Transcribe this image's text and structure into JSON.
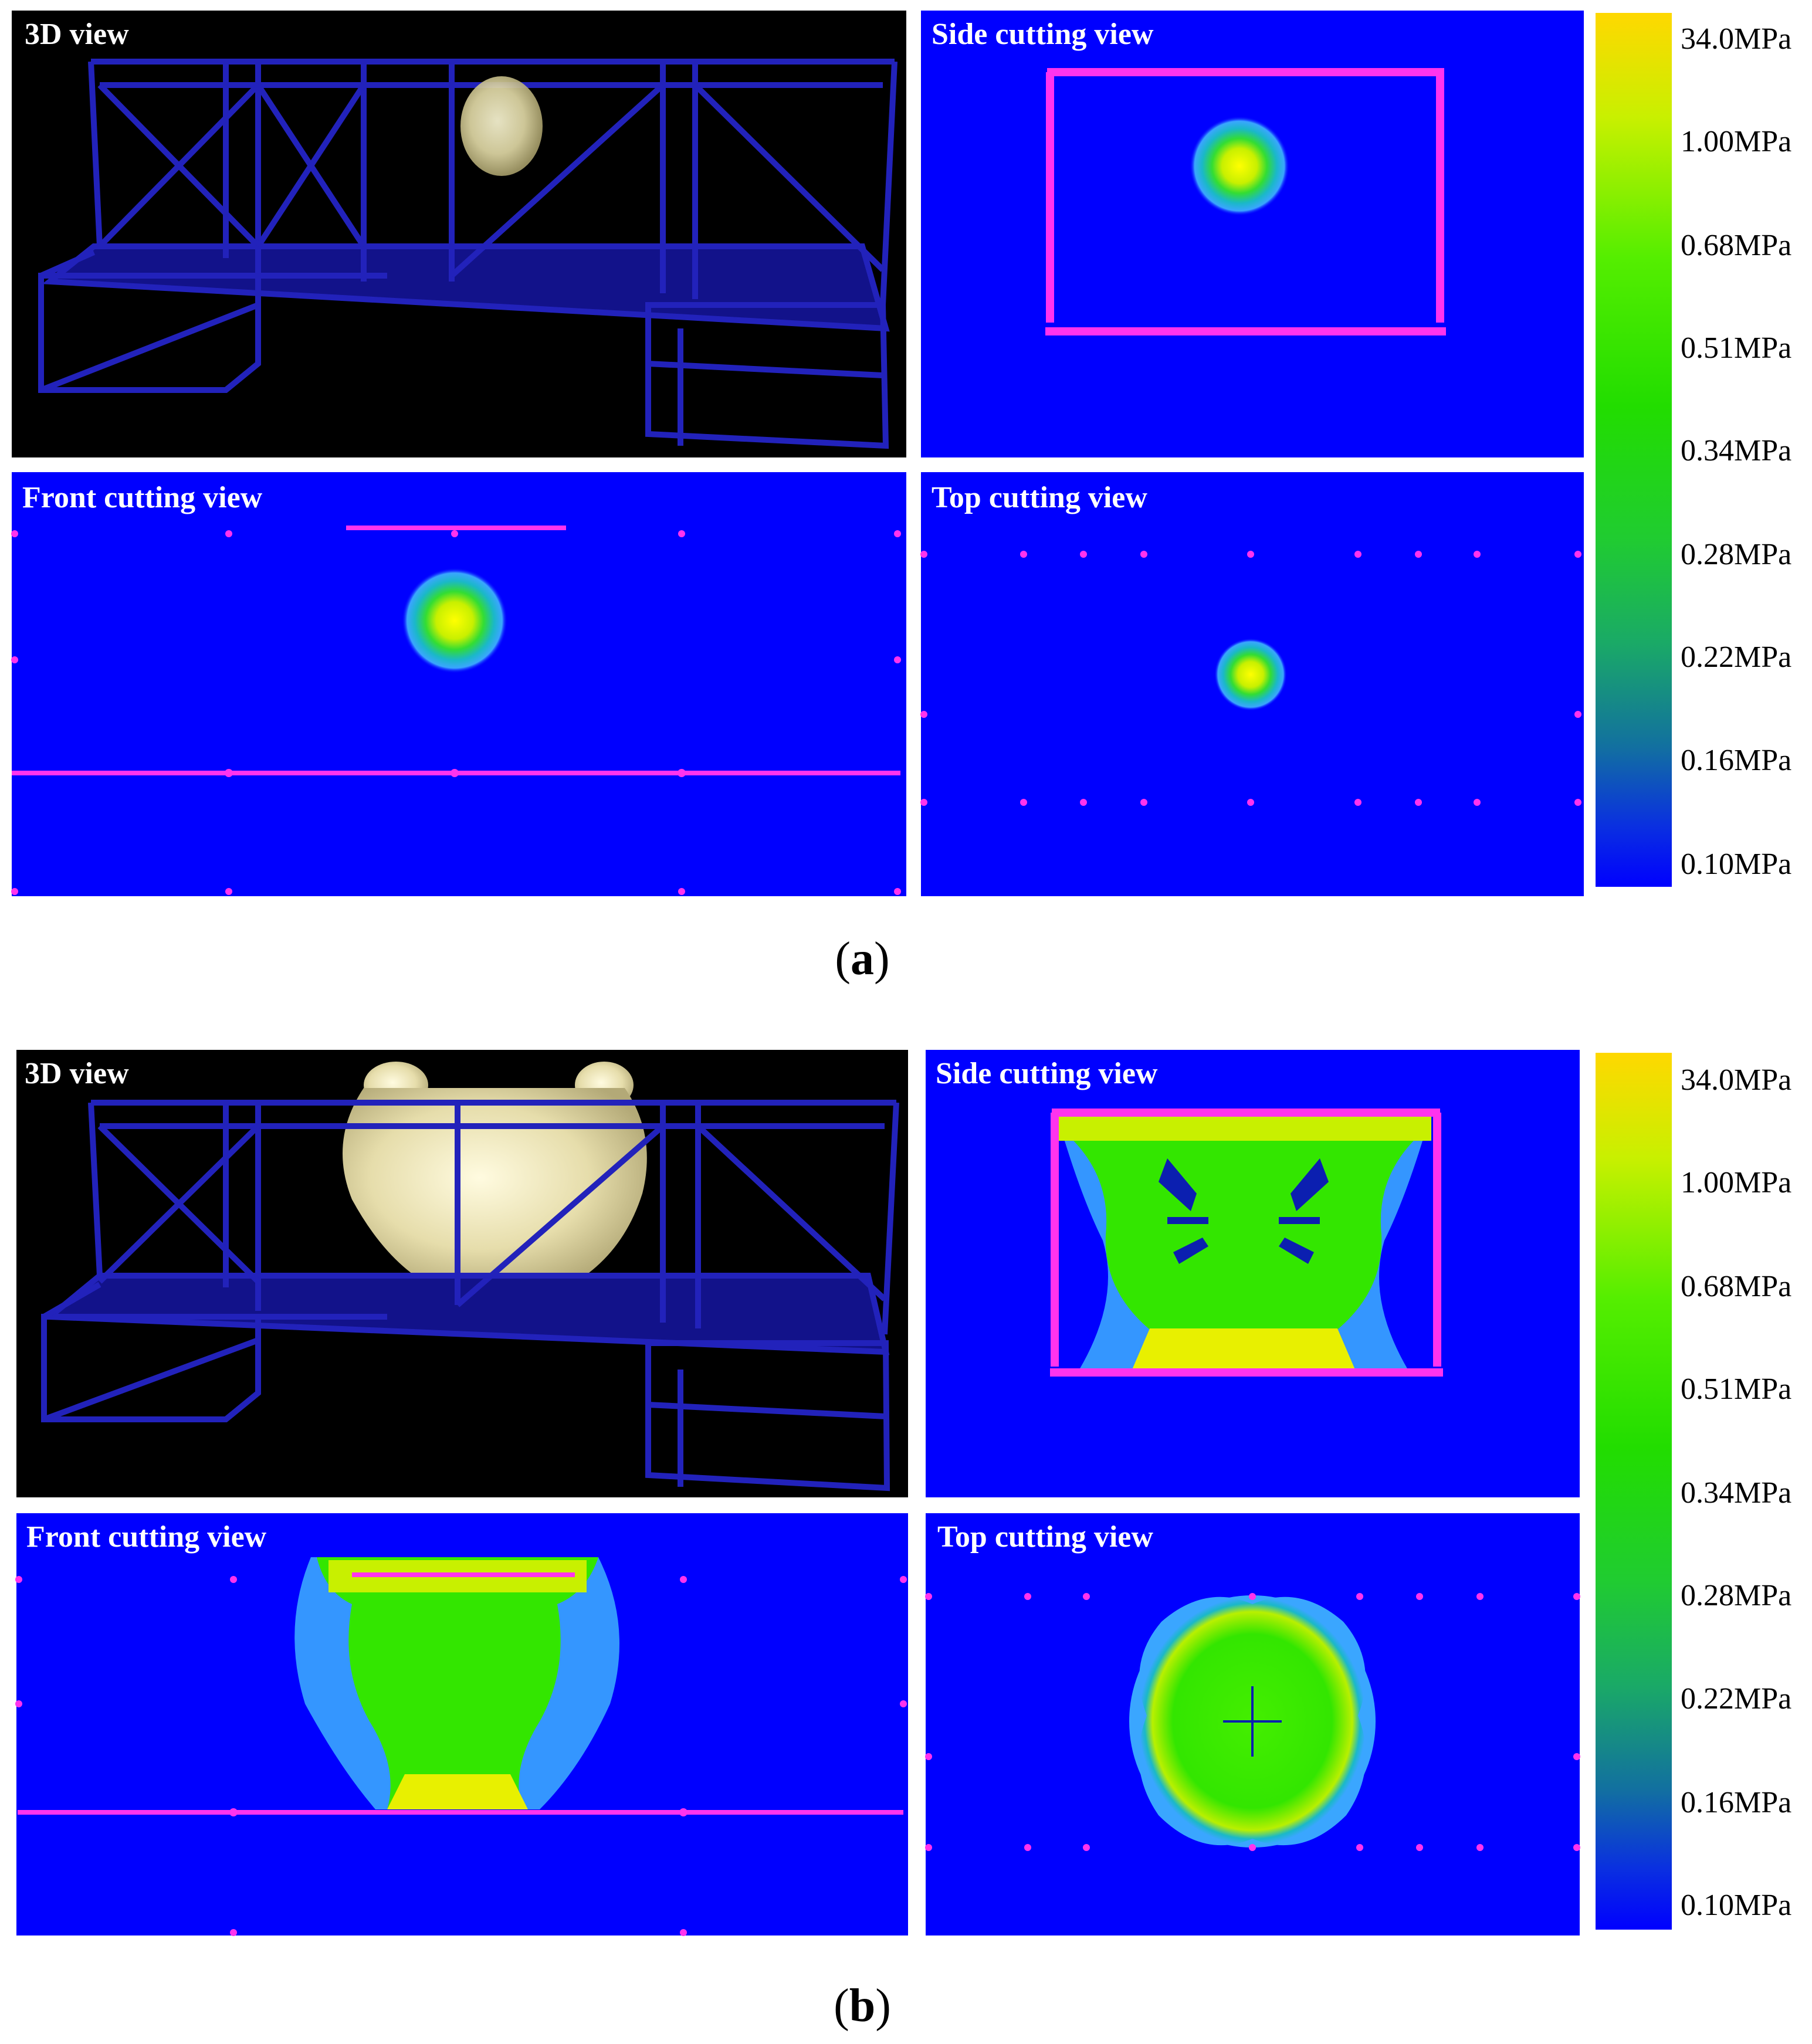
{
  "figures": [
    {
      "id": "a",
      "caption_letter": "a",
      "panels": {
        "view_3d": "3D view",
        "side": "Side cutting view",
        "front": "Front cutting view",
        "top": "Top cutting view"
      }
    },
    {
      "id": "b",
      "caption_letter": "b",
      "panels": {
        "view_3d": "3D view",
        "side": "Side cutting view",
        "front": "Front cutting view",
        "top": "Top cutting view"
      }
    }
  ],
  "colorbar": {
    "labels": [
      "34.0MPa",
      "1.00MPa",
      "0.68MPa",
      "0.51MPa",
      "0.34MPa",
      "0.28MPa",
      "0.22MPa",
      "0.16MPa",
      "0.10MPa"
    ],
    "gradient_top_to_bottom": [
      "#ffd800",
      "#c8f000",
      "#55ee00",
      "#22dd00",
      "#20cc30",
      "#1aaa66",
      "#1270a0",
      "#0a30e0",
      "#0000ff"
    ]
  },
  "colors": {
    "field_background": "#0000ff",
    "boundary_lines": "#ff33ee",
    "frame_3d": "#2222bb",
    "view_3d_background": "#000000"
  }
}
